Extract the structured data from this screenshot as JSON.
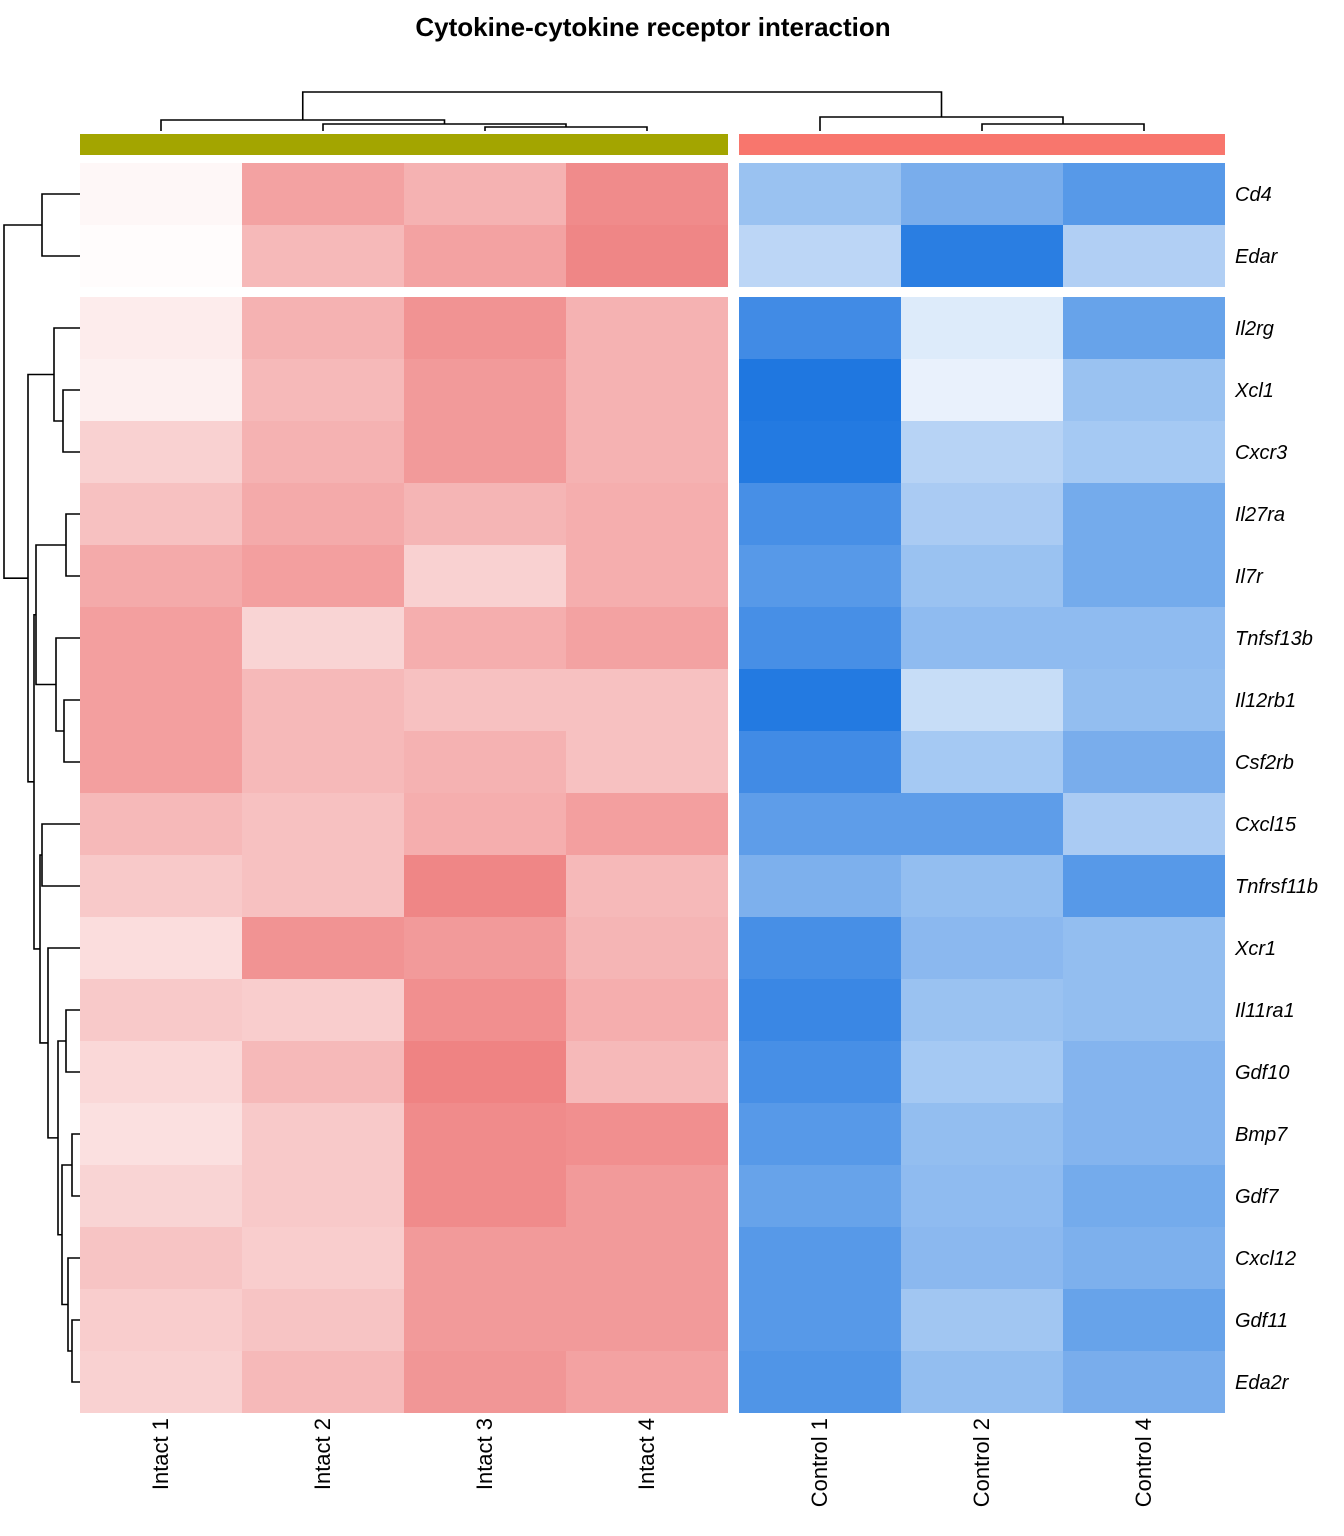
{
  "chart_data": {
    "type": "heatmap",
    "title": "Cytokine-cytokine receptor interaction",
    "columns": [
      "Intact 1",
      "Intact 2",
      "Intact 3",
      "Intact 4",
      "Control 1",
      "Control 2",
      "Control 4"
    ],
    "column_groups": [
      {
        "columns": [
          "Intact 1",
          "Intact 2",
          "Intact 3",
          "Intact 4"
        ],
        "color": "#A3A500"
      },
      {
        "columns": [
          "Control 1",
          "Control 2",
          "Control 4"
        ],
        "color": "#F8766D"
      }
    ],
    "rows": [
      "Cd4",
      "Edar",
      "Il2rg",
      "Xcl1",
      "Cxcr3",
      "Il27ra",
      "Il7r",
      "Tnfsf13b",
      "Il12rb1",
      "Csf2rb",
      "Cxcl15",
      "Tnfrsf11b",
      "Xcr1",
      "Il11ra1",
      "Gdf10",
      "Bmp7",
      "Gdf7",
      "Cxcl12",
      "Gdf11",
      "Eda2r"
    ],
    "row_split_after": 2,
    "values": [
      [
        0.05,
        0.6,
        0.5,
        0.75,
        -0.45,
        -0.6,
        -0.75
      ],
      [
        0.02,
        0.45,
        0.6,
        0.78,
        -0.3,
        -0.95,
        -0.35
      ],
      [
        0.12,
        0.5,
        0.7,
        0.5,
        -0.85,
        -0.15,
        -0.68
      ],
      [
        0.1,
        0.45,
        0.65,
        0.5,
        -1.0,
        -0.1,
        -0.45
      ],
      [
        0.3,
        0.5,
        0.65,
        0.5,
        -0.98,
        -0.32,
        -0.4
      ],
      [
        0.4,
        0.55,
        0.48,
        0.52,
        -0.82,
        -0.38,
        -0.62
      ],
      [
        0.55,
        0.62,
        0.3,
        0.52,
        -0.75,
        -0.45,
        -0.62
      ],
      [
        0.62,
        0.28,
        0.52,
        0.6,
        -0.82,
        -0.5,
        -0.5
      ],
      [
        0.62,
        0.45,
        0.4,
        0.4,
        -0.98,
        -0.25,
        -0.48
      ],
      [
        0.62,
        0.45,
        0.5,
        0.4,
        -0.85,
        -0.4,
        -0.6
      ],
      [
        0.45,
        0.4,
        0.52,
        0.62,
        -0.72,
        -0.72,
        -0.38
      ],
      [
        0.35,
        0.4,
        0.78,
        0.45,
        -0.58,
        -0.48,
        -0.75
      ],
      [
        0.22,
        0.7,
        0.65,
        0.48,
        -0.82,
        -0.52,
        -0.48
      ],
      [
        0.35,
        0.32,
        0.72,
        0.52,
        -0.88,
        -0.45,
        -0.48
      ],
      [
        0.25,
        0.45,
        0.8,
        0.45,
        -0.82,
        -0.4,
        -0.55
      ],
      [
        0.2,
        0.35,
        0.75,
        0.72,
        -0.75,
        -0.48,
        -0.55
      ],
      [
        0.28,
        0.35,
        0.75,
        0.65,
        -0.68,
        -0.5,
        -0.62
      ],
      [
        0.38,
        0.32,
        0.65,
        0.65,
        -0.75,
        -0.52,
        -0.58
      ],
      [
        0.32,
        0.38,
        0.65,
        0.65,
        -0.75,
        -0.42,
        -0.68
      ],
      [
        0.3,
        0.45,
        0.68,
        0.6,
        -0.78,
        -0.48,
        -0.6
      ]
    ],
    "color_low": "#1F77E0",
    "color_mid": "#FFFFFF",
    "color_high": "#EB6464",
    "legend": false
  }
}
